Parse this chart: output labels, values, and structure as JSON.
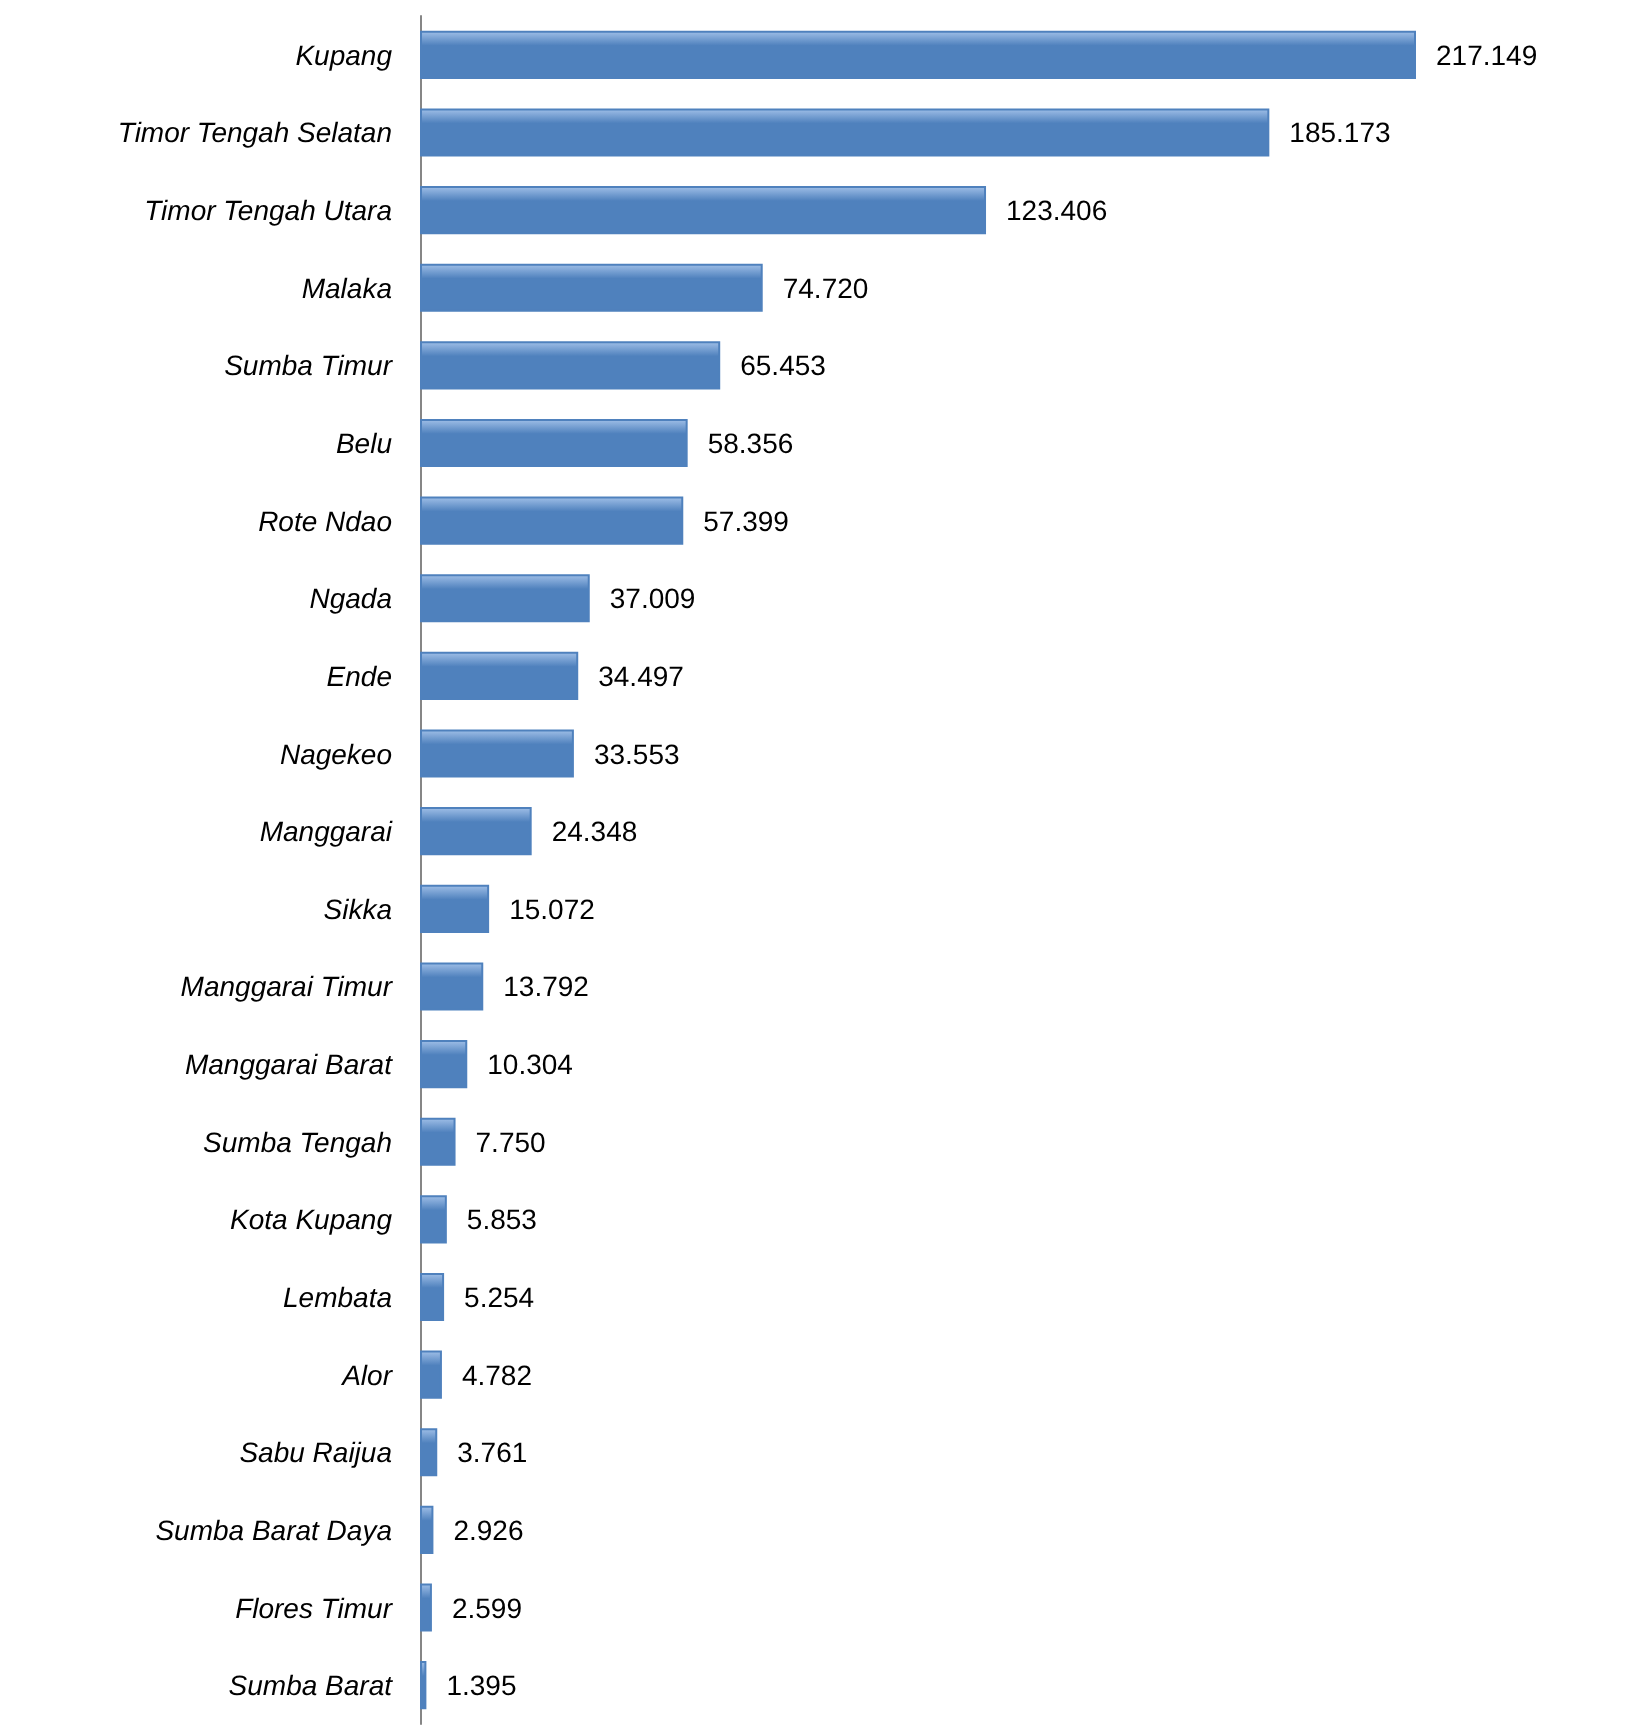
{
  "chart_data": {
    "type": "bar",
    "orientation": "horizontal",
    "color": "#4f81bd",
    "categories": [
      "Kupang",
      "Timor Tengah Selatan",
      "Timor Tengah Utara",
      "Malaka",
      "Sumba Timur",
      "Belu",
      "Rote Ndao",
      "Ngada",
      "Ende",
      "Nagekeo",
      "Manggarai",
      "Sikka",
      "Manggarai Timur",
      "Manggarai Barat",
      "Sumba Tengah",
      "Kota Kupang",
      "Lembata",
      "Alor",
      "Sabu Raijua",
      "Sumba Barat Daya",
      "Flores Timur",
      "Sumba Barat"
    ],
    "values": [
      217149,
      185173,
      123406,
      74720,
      65453,
      58356,
      57399,
      37009,
      34497,
      33553,
      24348,
      15072,
      13792,
      10304,
      7750,
      5853,
      5254,
      4782,
      3761,
      2926,
      2599,
      1395
    ],
    "value_labels": [
      "217.149",
      "185.173",
      "123.406",
      "74.720",
      "65.453",
      "58.356",
      "57.399",
      "37.009",
      "34.497",
      "33.553",
      "24.348",
      "15.072",
      "13.792",
      "10.304",
      "7.750",
      "5.853",
      "5.254",
      "4.782",
      "3.761",
      "2.926",
      "2.599",
      "1.395"
    ],
    "tick_labels": "y"
  }
}
